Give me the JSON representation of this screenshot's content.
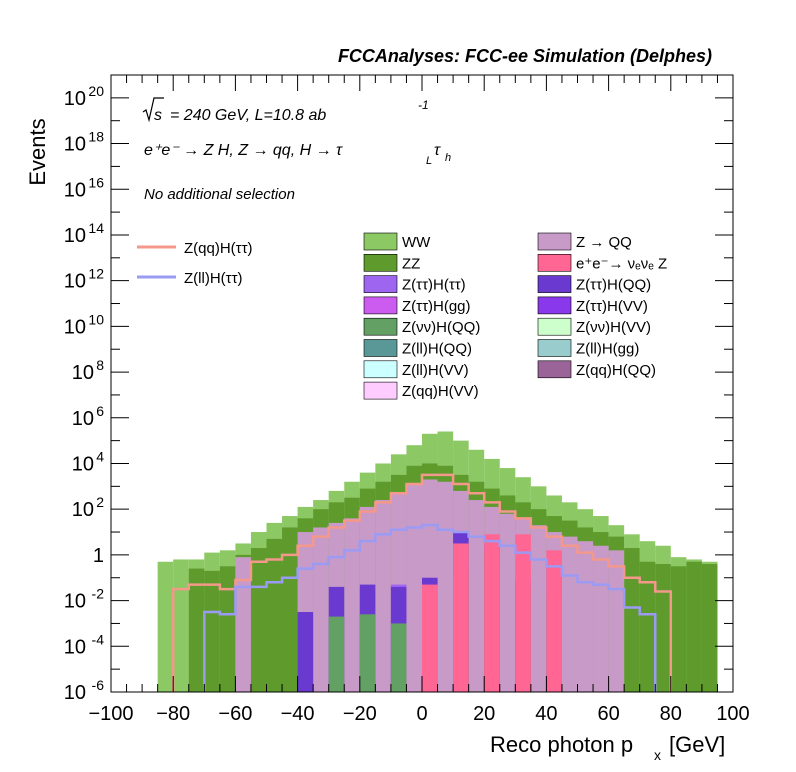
{
  "header": {
    "title": "FCCAnalyses: FCC-ee Simulation (Delphes)"
  },
  "annotations": {
    "energy_sqrt": "s",
    "energy_line": "= 240 GeV, L=10.8 ab",
    "lumi_exp": "-1",
    "process_line": "e⁺e⁻ → Z H, Z → qq, H → τ",
    "tau1_sub": "L",
    "tau2": "τ",
    "tau2_sub": "h",
    "selection": "No additional selection"
  },
  "axes": {
    "xlabel_main": "Reco photon p",
    "xlabel_sub": "x",
    "xlabel_unit": "[GeV]",
    "ylabel": "Events",
    "xticks": [
      "−100",
      "−80",
      "−60",
      "−40",
      "−20",
      "0",
      "20",
      "40",
      "60",
      "80",
      "100"
    ],
    "yticks": [
      {
        "base": "10",
        "exp": "-6"
      },
      {
        "base": "10",
        "exp": "-4"
      },
      {
        "base": "10",
        "exp": "-2"
      },
      {
        "base": "1",
        "exp": ""
      },
      {
        "base": "10",
        "exp": "2"
      },
      {
        "base": "10",
        "exp": "4"
      },
      {
        "base": "10",
        "exp": "6"
      },
      {
        "base": "10",
        "exp": "8"
      },
      {
        "base": "10",
        "exp": "10"
      },
      {
        "base": "10",
        "exp": "12"
      },
      {
        "base": "10",
        "exp": "14"
      },
      {
        "base": "10",
        "exp": "16"
      },
      {
        "base": "10",
        "exp": "18"
      },
      {
        "base": "10",
        "exp": "20"
      }
    ]
  },
  "legend": {
    "signals": [
      {
        "label": "Z(qq)H(ττ)",
        "color": "#f4988b"
      },
      {
        "label": "Z(ll)H(ττ)",
        "color": "#9b9bf4"
      }
    ],
    "backgrounds": [
      {
        "label": "WW",
        "color": "#8cc864"
      },
      {
        "label": "ZZ",
        "color": "#5e9a2c"
      },
      {
        "label": "Z(ττ)H(ττ)",
        "color": "#9e65f0"
      },
      {
        "label": "Z(ττ)H(gg)",
        "color": "#cc5cf0"
      },
      {
        "label": "Z(νν)H(QQ)",
        "color": "#62a064"
      },
      {
        "label": "Z(ll)H(QQ)",
        "color": "#5a9898"
      },
      {
        "label": "Z(ll)H(VV)",
        "color": "#ccffff"
      },
      {
        "label": "Z(qq)H(VV)",
        "color": "#ffccff"
      },
      {
        "label": "Z → QQ",
        "color": "#c89ac8"
      },
      {
        "label": "e⁺e⁻→ νₑνₑ Z",
        "color": "#ff6694"
      },
      {
        "label": "Z(ττ)H(QQ)",
        "color": "#6a3ad0"
      },
      {
        "label": "Z(ττ)H(VV)",
        "color": "#8a38ec"
      },
      {
        "label": "Z(νν)H(VV)",
        "color": "#ccffcc"
      },
      {
        "label": "Z(ll)H(gg)",
        "color": "#99cccc"
      },
      {
        "label": "Z(qq)H(QQ)",
        "color": "#9a6498"
      }
    ]
  },
  "chart_data": {
    "type": "area",
    "title": "FCCAnalyses: FCC-ee Simulation (Delphes)",
    "xlabel": "Reco photon p_x [GeV]",
    "ylabel": "Events",
    "xlim": [
      -100,
      100
    ],
    "ylim_log10": [
      -6,
      21
    ],
    "log_y": true,
    "bin_width": 5,
    "bin_edges_start": -100,
    "stack_bins_log10": [
      [
        null,
        null,
        null,
        -1.5,
        -1.3,
        -1.5,
        -0.3,
        -0.5,
        -1.0
      ],
      [
        null,
        -2.5,
        -1.4,
        -1.3,
        -1.4,
        -1.0,
        1.0,
        0.5,
        -1.2,
        -0.5
      ],
      [
        null,
        null,
        -2.7,
        -2.6,
        -3.0,
        -2.3,
        -0.8,
        0.2,
        -1.4,
        -1.8
      ],
      [
        null,
        null,
        null,
        null,
        null,
        -1.3,
        0.5,
        0.9,
        0.9,
        0.2
      ]
    ],
    "series": [
      {
        "name": "WW",
        "color": "#8cc864",
        "values_log10": [
          null,
          null,
          null,
          -0.3,
          -0.2,
          -0.2,
          0.1,
          0.2,
          0.5,
          1.0,
          1.4,
          1.7,
          2.1,
          2.4,
          2.8,
          3.2,
          3.6,
          4.0,
          4.4,
          4.8,
          5.3,
          5.4,
          5.0,
          4.6,
          4.2,
          3.8,
          3.4,
          3.0,
          2.6,
          2.3,
          2.0,
          1.7,
          1.3,
          0.9,
          0.6,
          0.4,
          -0.1,
          -0.2,
          -0.3,
          null
        ]
      },
      {
        "name": "ZZ",
        "color": "#5e9a2c",
        "values_log10": [
          null,
          null,
          null,
          null,
          null,
          -0.6,
          -0.7,
          -0.5,
          0.0,
          0.3,
          0.7,
          1.2,
          1.6,
          2.0,
          2.3,
          2.5,
          2.9,
          3.2,
          3.5,
          3.9,
          4.0,
          3.9,
          3.5,
          3.2,
          2.9,
          2.6,
          2.3,
          2.0,
          1.7,
          1.5,
          1.2,
          1.0,
          0.8,
          0.3,
          -0.3,
          -0.4,
          -0.5,
          -0.3,
          -0.4,
          null
        ]
      },
      {
        "name": "Z → QQ",
        "color": "#c89ac8",
        "values_log10": [
          null,
          null,
          null,
          null,
          null,
          null,
          null,
          null,
          -0.1,
          null,
          null,
          null,
          1.0,
          1.2,
          1.4,
          1.6,
          2.1,
          2.4,
          2.7,
          3.1,
          3.3,
          3.2,
          2.8,
          2.4,
          2.1,
          1.8,
          1.6,
          1.3,
          1.0,
          0.8,
          0.6,
          0.4,
          0.2,
          null,
          null,
          null,
          null,
          null,
          null,
          null
        ]
      },
      {
        "name": "Z(qq)H(ττ)",
        "color": "#f4988b",
        "values_log10": [
          null,
          null,
          null,
          null,
          -1.5,
          -1.3,
          -1.3,
          -1.5,
          -1.1,
          -0.3,
          -0.2,
          0.0,
          0.4,
          0.8,
          1.2,
          1.5,
          1.9,
          2.3,
          2.7,
          3.1,
          3.5,
          3.5,
          3.1,
          2.7,
          2.3,
          1.9,
          1.6,
          1.2,
          0.8,
          0.4,
          0.1,
          -0.2,
          -0.5,
          -1.0,
          -1.2,
          -1.6,
          null,
          null,
          null,
          null
        ]
      },
      {
        "name": "Z(ll)H(ττ)",
        "color": "#9b9bf4",
        "values_log10": [
          null,
          null,
          null,
          null,
          null,
          null,
          -2.5,
          -2.6,
          -1.4,
          -1.4,
          -1.2,
          -1.0,
          -0.6,
          -0.4,
          -0.1,
          0.2,
          0.6,
          0.9,
          1.1,
          1.2,
          1.3,
          1.1,
          1.0,
          0.8,
          0.6,
          0.4,
          0.1,
          -0.2,
          -0.5,
          -0.9,
          -1.2,
          -1.3,
          -1.5,
          -2.3,
          -2.6,
          null,
          null,
          null,
          null,
          null
        ]
      }
    ]
  }
}
